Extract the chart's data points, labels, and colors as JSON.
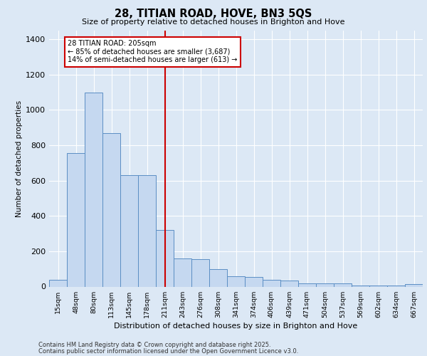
{
  "title_line1": "28, TITIAN ROAD, HOVE, BN3 5QS",
  "title_line2": "Size of property relative to detached houses in Brighton and Hove",
  "xlabel": "Distribution of detached houses by size in Brighton and Hove",
  "ylabel": "Number of detached properties",
  "categories": [
    "15sqm",
    "48sqm",
    "80sqm",
    "113sqm",
    "145sqm",
    "178sqm",
    "211sqm",
    "243sqm",
    "276sqm",
    "308sqm",
    "341sqm",
    "374sqm",
    "406sqm",
    "439sqm",
    "471sqm",
    "504sqm",
    "537sqm",
    "569sqm",
    "602sqm",
    "634sqm",
    "667sqm"
  ],
  "values": [
    40,
    757,
    1097,
    868,
    632,
    632,
    322,
    160,
    155,
    100,
    60,
    55,
    38,
    35,
    20,
    20,
    20,
    8,
    8,
    8,
    15
  ],
  "bar_color": "#c5d8f0",
  "bar_edge_color": "#5b8ec4",
  "vline_x": 6.0,
  "vline_color": "#cc0000",
  "annotation_text": "28 TITIAN ROAD: 205sqm\n← 85% of detached houses are smaller (3,687)\n14% of semi-detached houses are larger (613) →",
  "footnote1": "Contains HM Land Registry data © Crown copyright and database right 2025.",
  "footnote2": "Contains public sector information licensed under the Open Government Licence v3.0.",
  "ylim_max": 1450,
  "yticks": [
    0,
    200,
    400,
    600,
    800,
    1000,
    1200,
    1400
  ],
  "bg_color": "#dce8f5",
  "grid_color": "#ffffff"
}
